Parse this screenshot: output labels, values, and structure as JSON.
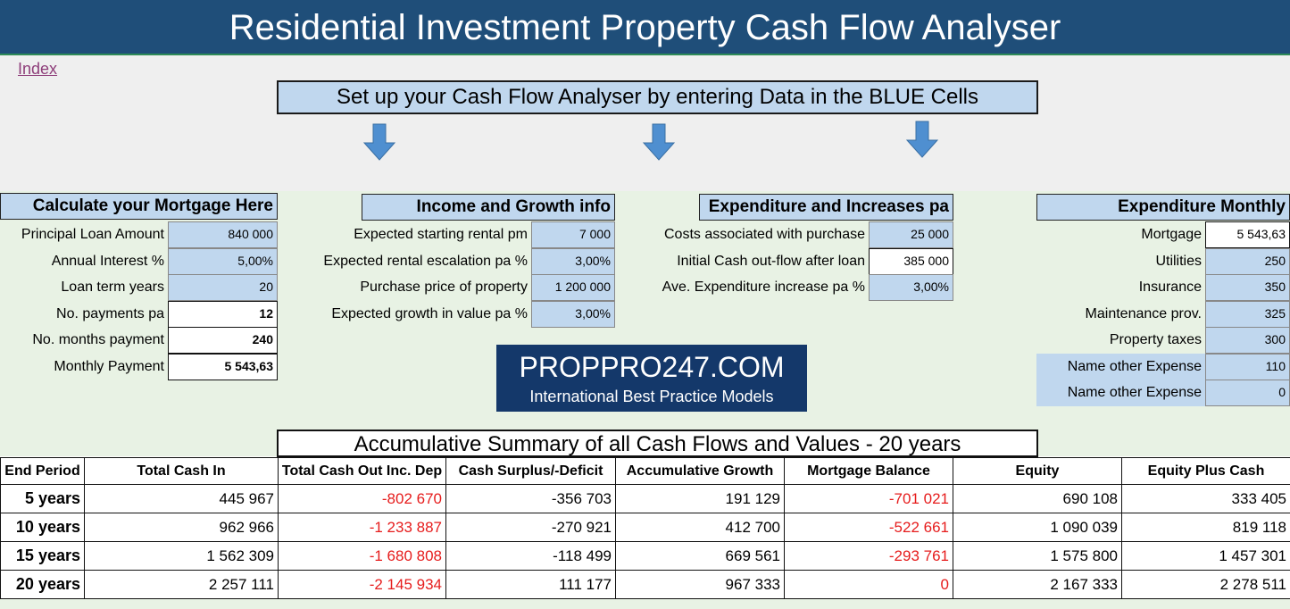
{
  "header": {
    "title": "Residential Investment Property Cash Flow Analyser"
  },
  "nav": {
    "index_link": "Index"
  },
  "instruction": "Set up your Cash Flow Analyser by entering Data in the BLUE Cells",
  "mortgage": {
    "title": "Calculate your Mortgage Here",
    "rows": [
      {
        "label": "Principal Loan Amount",
        "value": "840 000"
      },
      {
        "label": "Annual Interest %",
        "value": "5,00%"
      },
      {
        "label": "Loan term years",
        "value": "20"
      },
      {
        "label": "No. payments pa",
        "value": "12"
      },
      {
        "label": "No. months payment",
        "value": "240"
      },
      {
        "label": "Monthly Payment",
        "value": "5 543,63"
      }
    ]
  },
  "income": {
    "title": "Income and Growth info",
    "rows": [
      {
        "label": "Expected starting rental pm",
        "value": "7 000"
      },
      {
        "label": "Expected rental escalation pa %",
        "value": "3,00%"
      },
      {
        "label": "Purchase price of property",
        "value": "1 200 000"
      },
      {
        "label": "Expected growth in value pa %",
        "value": "3,00%"
      }
    ]
  },
  "expenditure_increases": {
    "title": "Expenditure and Increases pa",
    "rows": [
      {
        "label": "Costs associated with purchase",
        "value": "25 000"
      },
      {
        "label": "Initial Cash out-flow after loan",
        "value": "385 000"
      },
      {
        "label": "Ave. Expenditure increase pa %",
        "value": "3,00%"
      }
    ]
  },
  "expenditure_monthly": {
    "title": "Expenditure Monthly",
    "rows": [
      {
        "label": "Mortgage",
        "value": "5 543,63"
      },
      {
        "label": "Utilities",
        "value": "250"
      },
      {
        "label": "Insurance",
        "value": "350"
      },
      {
        "label": "Maintenance prov.",
        "value": "325"
      },
      {
        "label": "Property taxes",
        "value": "300"
      },
      {
        "label": "Name other Expense",
        "value": "110"
      },
      {
        "label": "Name other Expense",
        "value": "0"
      }
    ]
  },
  "logo": {
    "line1": "PROPPRO247.COM",
    "line2": "International Best Practice Models"
  },
  "summary": {
    "title": "Accumulative Summary of all Cash Flows and Values - 20 years",
    "columns": [
      "End Period",
      "Total Cash In",
      "Total Cash Out Inc. Dep",
      "Cash Surplus/-Deficit",
      "Accumulative Growth",
      "Mortgage Balance",
      "Equity",
      "Equity Plus Cash"
    ],
    "rows": [
      {
        "period": "5  years",
        "cash_in": "445 967",
        "cash_out": "-802 670",
        "surplus": "-356 703",
        "growth": "191 129",
        "mortgage_balance": "-701 021",
        "equity": "690 108",
        "equity_plus_cash": "333 405"
      },
      {
        "period": "10 years",
        "cash_in": "962 966",
        "cash_out": "-1 233 887",
        "surplus": "-270 921",
        "growth": "412 700",
        "mortgage_balance": "-522 661",
        "equity": "1 090 039",
        "equity_plus_cash": "819 118"
      },
      {
        "period": "15 years",
        "cash_in": "1 562 309",
        "cash_out": "-1 680 808",
        "surplus": "-118 499",
        "growth": "669 561",
        "mortgage_balance": "-293 761",
        "equity": "1 575 800",
        "equity_plus_cash": "1 457 301"
      },
      {
        "period": "20 years",
        "cash_in": "2 257 111",
        "cash_out": "-2 145 934",
        "surplus": "111 177",
        "growth": "967 333",
        "mortgage_balance": "0",
        "equity": "2 167 333",
        "equity_plus_cash": "2 278 511"
      }
    ]
  },
  "colors": {
    "title_bar": "#1f4e79",
    "input_cell": "#c0d7ee",
    "negative_text": "#e61c1c",
    "logo_bg": "#14386a",
    "panel_bg": "#e8f2e4",
    "arrow": "#4f8fd0"
  },
  "icons": {
    "arrow": "down-arrow-icon"
  }
}
